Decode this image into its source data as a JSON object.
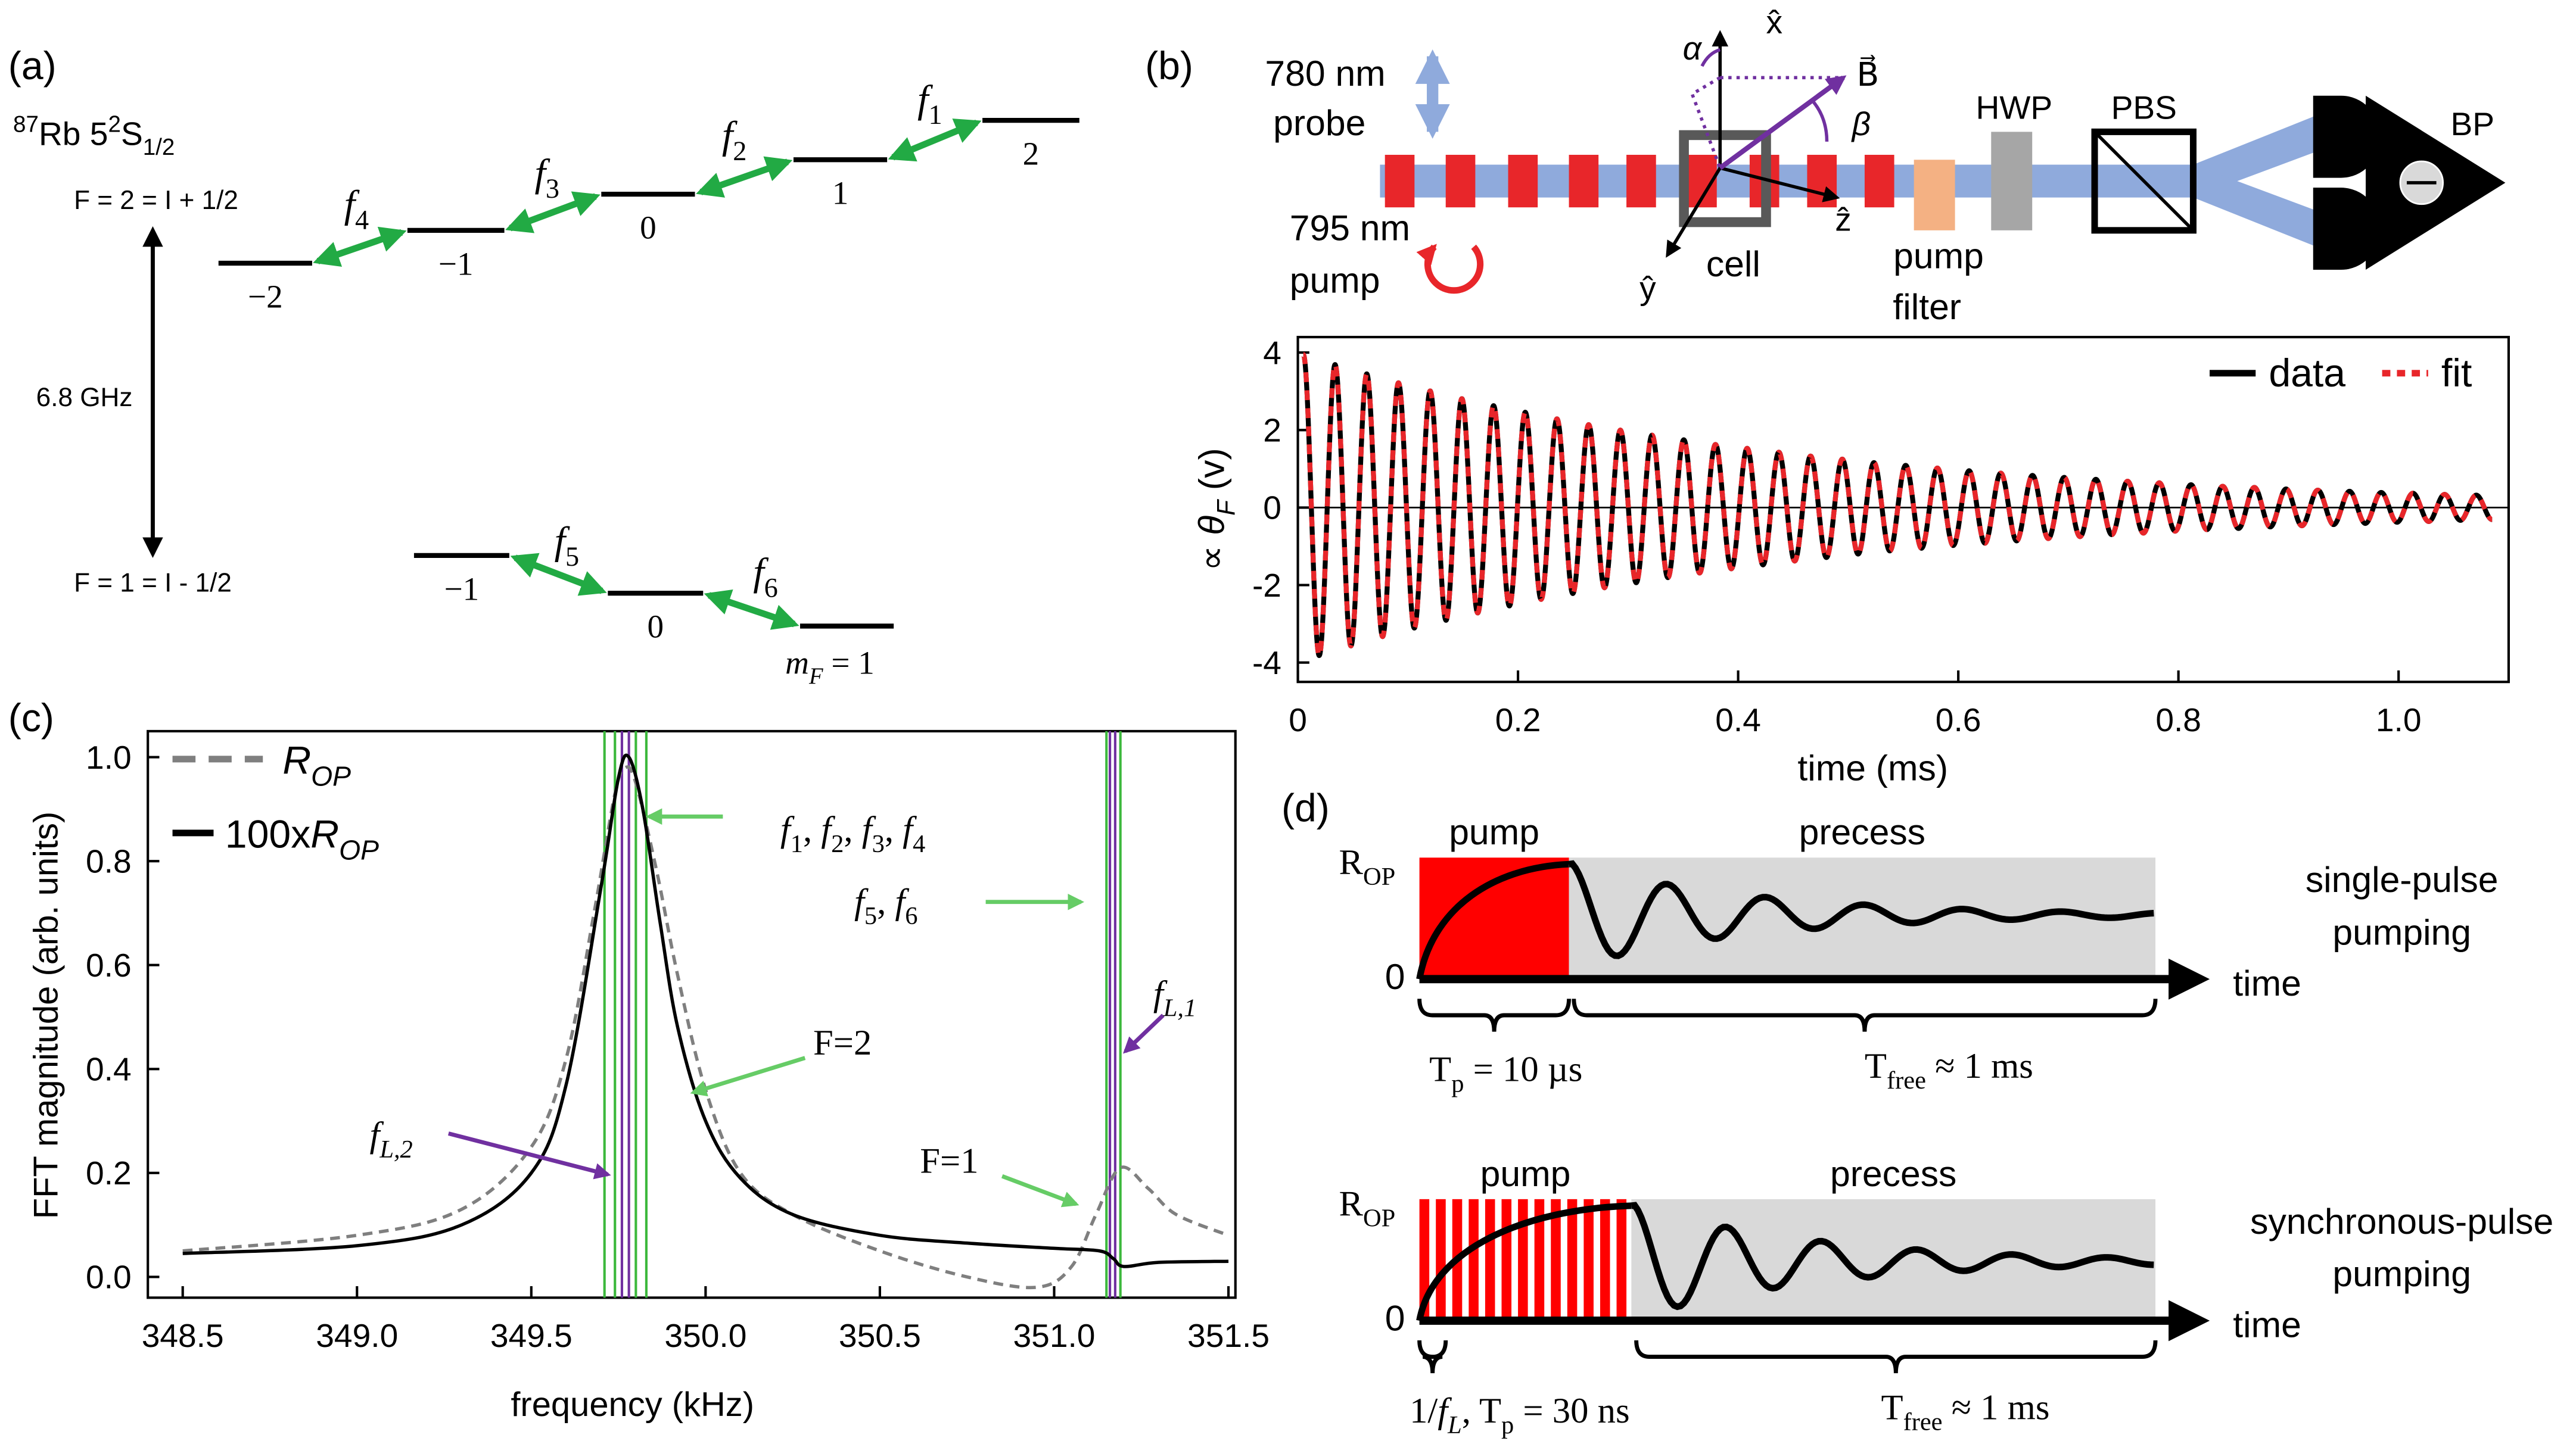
{
  "panel_labels": [
    "(a)",
    "(b)",
    "(c)",
    "(d)"
  ],
  "level_diagram": {
    "title": [
      [
        "87",
        "sup"
      ],
      [
        "Rb 5",
        ""
      ],
      [
        "2",
        "sup"
      ],
      [
        "S",
        ""
      ],
      [
        "1/2",
        "sub"
      ]
    ],
    "upper_label": "F = 2 = I + 1/2",
    "lower_label": "F = 1 = I - 1/2",
    "splitting": "6.8 GHz",
    "upper_levels": [
      "−2",
      "−1",
      "0",
      "1",
      "2"
    ],
    "lower_levels": [
      "−1",
      "0"
    ],
    "mF_label": [
      [
        "m",
        "i"
      ],
      [
        "F",
        "isub"
      ],
      [
        " = 1",
        ""
      ]
    ],
    "transitions": [
      [
        [
          "f",
          "i"
        ],
        [
          "1",
          "sub"
        ]
      ],
      [
        [
          "f",
          "i"
        ],
        [
          "2",
          "sub"
        ]
      ],
      [
        [
          "f",
          "i"
        ],
        [
          "3",
          "sub"
        ]
      ],
      [
        [
          "f",
          "i"
        ],
        [
          "4",
          "sub"
        ]
      ],
      [
        [
          "f",
          "i"
        ],
        [
          "5",
          "sub"
        ]
      ],
      [
        [
          "f",
          "i"
        ],
        [
          "6",
          "sub"
        ]
      ]
    ]
  },
  "setup": {
    "probe": [
      "780 nm",
      "probe"
    ],
    "pump": [
      "795 nm",
      "pump"
    ],
    "axes": {
      "x": "x̂",
      "y": "ŷ",
      "z": "ẑ"
    },
    "field": "B⃗",
    "angles": [
      "α",
      "β"
    ],
    "cell": "cell",
    "filter": [
      "pump",
      "filter"
    ],
    "hwp": "HWP",
    "pbs": "PBS",
    "detector": "BP"
  },
  "chart_data": [
    {
      "type": "line",
      "ylabel": [
        [
          "∝ ",
          ""
        ],
        [
          "θ",
          "i"
        ],
        [
          "F",
          "isub"
        ],
        [
          " (v)",
          ""
        ]
      ],
      "xlabel": "time (ms)",
      "x": [
        0.005,
        0.0194,
        0.0338,
        0.0482,
        0.0626,
        0.077,
        0.0914,
        0.1058,
        0.1202,
        0.1346,
        0.149,
        0.1634,
        0.1778,
        0.1922,
        0.2066,
        0.221,
        0.2354,
        0.2498,
        0.2642,
        0.2786,
        0.293,
        0.3074,
        0.3218,
        0.3362,
        0.3506,
        0.365,
        0.3794,
        0.3938,
        0.4082,
        0.4226,
        0.437,
        0.4514,
        0.4658,
        0.4802,
        0.4946,
        0.509,
        0.5234,
        0.5378,
        0.5522,
        0.5666,
        0.581,
        0.5954,
        0.6098,
        0.6242,
        0.6386,
        0.653,
        0.6674,
        0.6818,
        0.6962,
        0.7106,
        0.725,
        0.7394,
        0.7538,
        0.7682,
        0.7826,
        0.797,
        0.8114,
        0.8258,
        0.8402,
        0.8546,
        0.869,
        0.8834,
        0.8978,
        0.9122,
        0.9266,
        0.941,
        0.9554,
        0.9698,
        0.9842,
        0.9986,
        1.013,
        1.0274,
        1.0418,
        1.0562,
        1.0706,
        1.085
      ],
      "series": [
        {
          "name": "data",
          "color": "#000000",
          "values": [
            3.95,
            -3.82,
            3.69,
            -3.57,
            3.45,
            -3.33,
            3.22,
            -3.11,
            3.01,
            -2.91,
            2.81,
            -2.72,
            2.63,
            -2.54,
            2.46,
            -2.37,
            2.29,
            -2.22,
            2.14,
            -2.07,
            2.0,
            -1.94,
            1.87,
            -1.81,
            1.75,
            -1.69,
            1.63,
            -1.58,
            1.53,
            -1.48,
            1.43,
            -1.38,
            1.33,
            -1.29,
            1.25,
            -1.2,
            1.16,
            -1.12,
            1.09,
            -1.05,
            1.02,
            -0.98,
            0.95,
            -0.92,
            0.89,
            -0.86,
            0.83,
            -0.8,
            0.78,
            -0.75,
            0.73,
            -0.7,
            0.68,
            -0.66,
            0.64,
            -0.61,
            0.59,
            -0.57,
            0.55,
            -0.54,
            0.52,
            -0.5,
            0.48,
            -0.47,
            0.45,
            -0.44,
            0.42,
            -0.41,
            0.39,
            -0.38,
            0.37,
            -0.36,
            0.34,
            -0.33,
            0.32,
            -0.31
          ]
        },
        {
          "name": "fit",
          "color": "#e8262a",
          "dash": true,
          "values": [
            3.95,
            -3.82,
            3.69,
            -3.57,
            3.45,
            -3.33,
            3.22,
            -3.11,
            3.01,
            -2.91,
            2.81,
            -2.72,
            2.63,
            -2.54,
            2.46,
            -2.37,
            2.29,
            -2.22,
            2.14,
            -2.07,
            2.0,
            -1.94,
            1.87,
            -1.81,
            1.75,
            -1.69,
            1.63,
            -1.58,
            1.53,
            -1.48,
            1.43,
            -1.38,
            1.33,
            -1.29,
            1.25,
            -1.2,
            1.16,
            -1.12,
            1.09,
            -1.05,
            1.02,
            -0.98,
            0.95,
            -0.92,
            0.89,
            -0.86,
            0.83,
            -0.8,
            0.78,
            -0.75,
            0.73,
            -0.7,
            0.68,
            -0.66,
            0.64,
            -0.61,
            0.59,
            -0.57,
            0.55,
            -0.54,
            0.52,
            -0.5,
            0.48,
            -0.47,
            0.45,
            -0.44,
            0.42,
            -0.41,
            0.39,
            -0.38,
            0.37,
            -0.36,
            0.34,
            -0.33,
            0.32,
            -0.31
          ]
        }
      ],
      "xlim": [
        0,
        1.1
      ],
      "ylim": [
        -4.5,
        4.4
      ],
      "xticks": [
        0,
        0.2,
        0.4,
        0.6,
        0.8,
        {
          "value": 1,
          "label": "1.0"
        }
      ],
      "yticks": [
        -4,
        -2,
        0,
        2,
        4
      ],
      "legend": "upper right"
    },
    {
      "type": "line",
      "ylabel": "FFT magnitude (arb. units)",
      "xlabel": "frequency  (kHz)",
      "series": [
        {
          "name": [
            [
              "R",
              "i"
            ],
            [
              "OP",
              "isub"
            ]
          ],
          "color": "#7f7f7f",
          "dash": true,
          "x": [
            348.5,
            349.0,
            349.3,
            349.5,
            349.6,
            349.68,
            349.74,
            349.77,
            349.8,
            349.86,
            349.92,
            350.0,
            350.1,
            350.25,
            350.5,
            350.75,
            350.95,
            351.05,
            351.12,
            351.19,
            351.27,
            351.35,
            351.5
          ],
          "values": [
            0.05,
            0.08,
            0.13,
            0.25,
            0.42,
            0.7,
            0.93,
            0.98,
            0.95,
            0.78,
            0.58,
            0.36,
            0.2,
            0.12,
            0.05,
            0.0,
            -0.02,
            0.02,
            0.12,
            0.21,
            0.17,
            0.12,
            0.08
          ]
        },
        {
          "name": [
            [
              "100x",
              ""
            ],
            [
              "R",
              "i"
            ],
            [
              "OP",
              "isub"
            ]
          ],
          "color": "#000000",
          "x": [
            348.5,
            349.0,
            349.3,
            349.5,
            349.6,
            349.7,
            349.75,
            349.78,
            349.82,
            349.87,
            349.92,
            350.0,
            350.1,
            350.25,
            350.5,
            350.75,
            351.0,
            351.13,
            351.17,
            351.2,
            351.3,
            351.5
          ],
          "values": [
            0.045,
            0.06,
            0.1,
            0.2,
            0.37,
            0.75,
            0.96,
            1.0,
            0.9,
            0.68,
            0.48,
            0.3,
            0.19,
            0.12,
            0.08,
            0.065,
            0.055,
            0.05,
            0.035,
            0.02,
            0.028,
            0.03
          ]
        }
      ],
      "vlines": [
        {
          "color": "#3cb83c",
          "x": [
            349.71,
            349.74,
            349.8,
            349.83,
            351.15,
            351.19
          ]
        },
        {
          "color": "#7030a0",
          "x": [
            349.76,
            349.78,
            351.16,
            351.175
          ]
        }
      ],
      "annotations": [
        {
          "text": [
            [
              "f",
              "i"
            ],
            [
              "1",
              "sub"
            ],
            [
              ", ",
              ""
            ],
            [
              "f",
              "i"
            ],
            [
              "2",
              "sub"
            ],
            [
              ", ",
              ""
            ],
            [
              "f",
              "i"
            ],
            [
              "3",
              "sub"
            ],
            [
              ", ",
              ""
            ],
            [
              "f",
              "i"
            ],
            [
              "4",
              "sub"
            ]
          ],
          "color": "#66cc66"
        },
        {
          "text": [
            [
              "f",
              "i"
            ],
            [
              "5",
              "sub"
            ],
            [
              ", ",
              ""
            ],
            [
              "f",
              "i"
            ],
            [
              "6",
              "sub"
            ]
          ],
          "color": "#66cc66"
        },
        {
          "text": "F=2",
          "color": "#66cc66"
        },
        {
          "text": "F=1",
          "color": "#66cc66"
        },
        {
          "text": [
            [
              "f",
              "i"
            ],
            [
              "L,1",
              "isub"
            ]
          ],
          "color": "#7030a0"
        },
        {
          "text": [
            [
              "f",
              "i"
            ],
            [
              "L,2",
              "isub"
            ]
          ],
          "color": "#7030a0"
        }
      ],
      "xlim": [
        348.4,
        351.52
      ],
      "ylim": [
        -0.04,
        1.05
      ],
      "xticks": [
        348.5,
        {
          "value": 349,
          "label": "349.0"
        },
        349.5,
        {
          "value": 350,
          "label": "350.0"
        },
        350.5,
        {
          "value": 351,
          "label": "351.0"
        },
        351.5
      ],
      "yticks": [
        {
          "value": 0,
          "label": "0.0"
        },
        0.2,
        0.4,
        0.6,
        0.8,
        {
          "value": 1,
          "label": "1.0"
        }
      ],
      "legend": "upper left"
    }
  ],
  "pulse_diagrams": [
    {
      "ylabel": [
        [
          "R",
          ""
        ],
        [
          "OP",
          "sub"
        ]
      ],
      "zero": "0",
      "pump": "pump",
      "precess": "precess",
      "time": "time",
      "caption": [
        "single-pulse",
        "pumping"
      ],
      "pump_label": [
        [
          "T",
          ""
        ],
        [
          "p",
          "sub"
        ],
        [
          " = 10 µs",
          ""
        ]
      ],
      "free_label": [
        [
          "T",
          ""
        ],
        [
          "free",
          "sub"
        ],
        [
          " ≈ 1 ms",
          ""
        ]
      ]
    },
    {
      "ylabel": [
        [
          "R",
          ""
        ],
        [
          "OP",
          "sub"
        ]
      ],
      "zero": "0",
      "pump": "pump",
      "precess": "precess",
      "time": "time",
      "caption": [
        "synchronous-pulse",
        "pumping"
      ],
      "pump_label": [
        [
          "1/",
          ""
        ],
        [
          "f",
          "i"
        ],
        [
          "L",
          "isub"
        ],
        [
          ", T",
          ""
        ],
        [
          "p",
          "sub"
        ],
        [
          " = 30 ns",
          ""
        ]
      ],
      "free_label": [
        [
          "T",
          ""
        ],
        [
          "free",
          "sub"
        ],
        [
          " ≈ 1 ms",
          ""
        ]
      ]
    }
  ]
}
